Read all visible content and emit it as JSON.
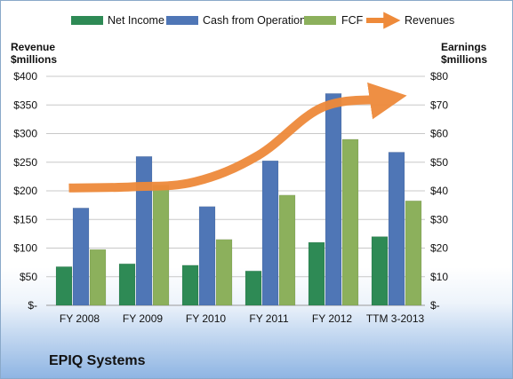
{
  "company_name": "EPIQ Systems",
  "colors": {
    "net_income": "#2e8a55",
    "cash_from_operations": "#4f76b6",
    "fcf": "#8cb05c",
    "revenues": "#ee8a3a"
  },
  "chart_data": {
    "type": "bar",
    "categories": [
      "FY 2008",
      "FY 2009",
      "FY 2010",
      "FY 2011",
      "FY 2012",
      "TTM 3-2013"
    ],
    "left_axis": {
      "title_line1": "Revenue",
      "title_line2": "$millions",
      "ticks": [
        "$-",
        "$50",
        "$100",
        "$150",
        "$200",
        "$250",
        "$300",
        "$350",
        "$400"
      ],
      "ylim": [
        0,
        400
      ]
    },
    "right_axis": {
      "title_line1": "Earnings",
      "title_line2": "$millions",
      "ticks": [
        "$-",
        "$10",
        "$20",
        "$30",
        "$40",
        "$50",
        "$60",
        "$70",
        "$80"
      ],
      "ylim": [
        0,
        80
      ]
    },
    "series": [
      {
        "name": "Net Income",
        "axis": "right",
        "type": "bar",
        "values": [
          13.5,
          14.5,
          14,
          12,
          22,
          24
        ]
      },
      {
        "name": "Cash from Operations",
        "axis": "right",
        "type": "bar",
        "values": [
          34,
          52,
          34.5,
          50.5,
          74,
          53.5
        ]
      },
      {
        "name": "FCF",
        "axis": "right",
        "type": "bar",
        "values": [
          19.5,
          42,
          23,
          38.5,
          58,
          36.5
        ]
      },
      {
        "name": "Revenues",
        "axis": "left",
        "type": "line",
        "values": [
          205,
          207,
          216,
          262,
          345,
          360
        ]
      }
    ],
    "grid": true,
    "legend_position": "top"
  }
}
